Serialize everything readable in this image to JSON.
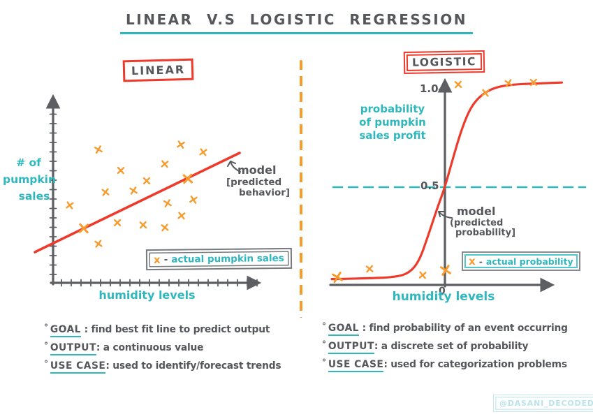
{
  "palette": {
    "teal": "#2fb7be",
    "orange": "#f89b2d",
    "red": "#ee3a2b",
    "ink": "#55575b",
    "axis": "#5c5e61",
    "watermark": "#b9e4eb"
  },
  "title": "LINEAR V.S LOGISTIC REGRESSION",
  "bullet_char": "°",
  "watermark": "@DASANI_DECODED",
  "left_panel": {
    "heading": "LINEAR",
    "ylabel_lines": [
      "# of",
      "pumpkin",
      "sales"
    ],
    "xlabel": "humidity levels",
    "annotation_lines": [
      "model",
      "[predicted",
      "behavior]"
    ],
    "legend": {
      "marker": "x",
      "dash": "-",
      "label": "actual pumpkin sales"
    },
    "bullets": [
      {
        "term": "GOAL",
        "text": " : find best fit line to predict output"
      },
      {
        "term": "OUTPUT",
        "text": ": a continuous value"
      },
      {
        "term": "USE CASE",
        "text": ": used to identify/forecast trends"
      }
    ]
  },
  "right_panel": {
    "heading": "LOGISTIC",
    "ylabel_lines": [
      "probability",
      "of pumpkin",
      "sales profit"
    ],
    "xlabel": "humidity levels",
    "ytick_top": "1.0",
    "ytick_mid": "0.5",
    "origin_label": "0",
    "annotation_lines": [
      "model",
      "(predicted",
      "probability]"
    ],
    "legend": {
      "marker": "x",
      "dash": "-",
      "label": "actual probability"
    },
    "bullets": [
      {
        "term": "GOAL",
        "text": " : find probability of an event occurring"
      },
      {
        "term": "OUTPUT",
        "text": ": a discrete set of probability"
      },
      {
        "term": "USE CASE",
        "text": ": used for categorization problems"
      }
    ]
  },
  "chart_data": [
    {
      "type": "scatter",
      "title": "LINEAR",
      "xlabel": "humidity levels",
      "ylabel": "# of pumpkin sales",
      "axes_numeric": false,
      "coord_note": "no numeric scale shown; coords are fractions of plot area (x: 0 at y-axis to 1 at axis end, y: 0 at x-axis to 1 at top)",
      "points": [
        {
          "x": 0.217,
          "y": 0.707
        },
        {
          "x": 0.612,
          "y": 0.733
        },
        {
          "x": 0.719,
          "y": 0.693
        },
        {
          "x": 0.535,
          "y": 0.63
        },
        {
          "x": 0.324,
          "y": 0.596
        },
        {
          "x": 0.448,
          "y": 0.541
        },
        {
          "x": 0.645,
          "y": 0.552,
          "on_line": true
        },
        {
          "x": 0.251,
          "y": 0.481
        },
        {
          "x": 0.385,
          "y": 0.489
        },
        {
          "x": 0.548,
          "y": 0.422
        },
        {
          "x": 0.672,
          "y": 0.441
        },
        {
          "x": 0.08,
          "y": 0.411
        },
        {
          "x": 0.615,
          "y": 0.356
        },
        {
          "x": 0.147,
          "y": 0.289,
          "on_line": true
        },
        {
          "x": 0.308,
          "y": 0.319
        },
        {
          "x": 0.431,
          "y": 0.307
        },
        {
          "x": 0.535,
          "y": 0.293
        },
        {
          "x": 0.217,
          "y": 0.207
        }
      ],
      "model_line": {
        "x1": -0.087,
        "y1": 0.163,
        "x2": 0.893,
        "y2": 0.689
      },
      "legend": "x - actual pumpkin sales",
      "annotation": "model [predicted behavior]"
    },
    {
      "type": "line",
      "title": "LOGISTIC",
      "xlabel": "humidity levels",
      "ylabel": "probability of pumpkin sales profit",
      "x_note": "x in fractions of plot width measured from the y-axis (origin labeled 0)",
      "y_ticks": [
        0.5,
        1.0
      ],
      "y_tick_labels": [
        "0.5",
        "1.0"
      ],
      "threshold": 0.5,
      "curve": [
        [
          -0.503,
          0.03
        ],
        [
          -0.35,
          0.033
        ],
        [
          -0.22,
          0.04
        ],
        [
          -0.16,
          0.06
        ],
        [
          -0.115,
          0.12
        ],
        [
          -0.075,
          0.25
        ],
        [
          -0.035,
          0.39
        ],
        [
          0.0,
          0.5
        ],
        [
          0.035,
          0.645
        ],
        [
          0.075,
          0.8
        ],
        [
          0.115,
          0.91
        ],
        [
          0.16,
          0.97
        ],
        [
          0.22,
          1.01
        ],
        [
          0.3,
          1.025
        ],
        [
          0.4,
          1.03
        ],
        [
          0.52,
          1.035
        ]
      ],
      "points": [
        {
          "x": -0.478,
          "y": 0.039,
          "big": true
        },
        {
          "x": -0.335,
          "y": 0.082
        },
        {
          "x": -0.099,
          "y": 0.05
        },
        {
          "x": 0.003,
          "y": 0.075,
          "big": true
        },
        {
          "x": 0.059,
          "y": 1.025
        },
        {
          "x": 0.18,
          "y": 0.982
        },
        {
          "x": 0.283,
          "y": 1.032
        },
        {
          "x": 0.394,
          "y": 1.036
        }
      ],
      "legend": "x - actual probability",
      "annotation": "model (predicted probability)"
    }
  ]
}
